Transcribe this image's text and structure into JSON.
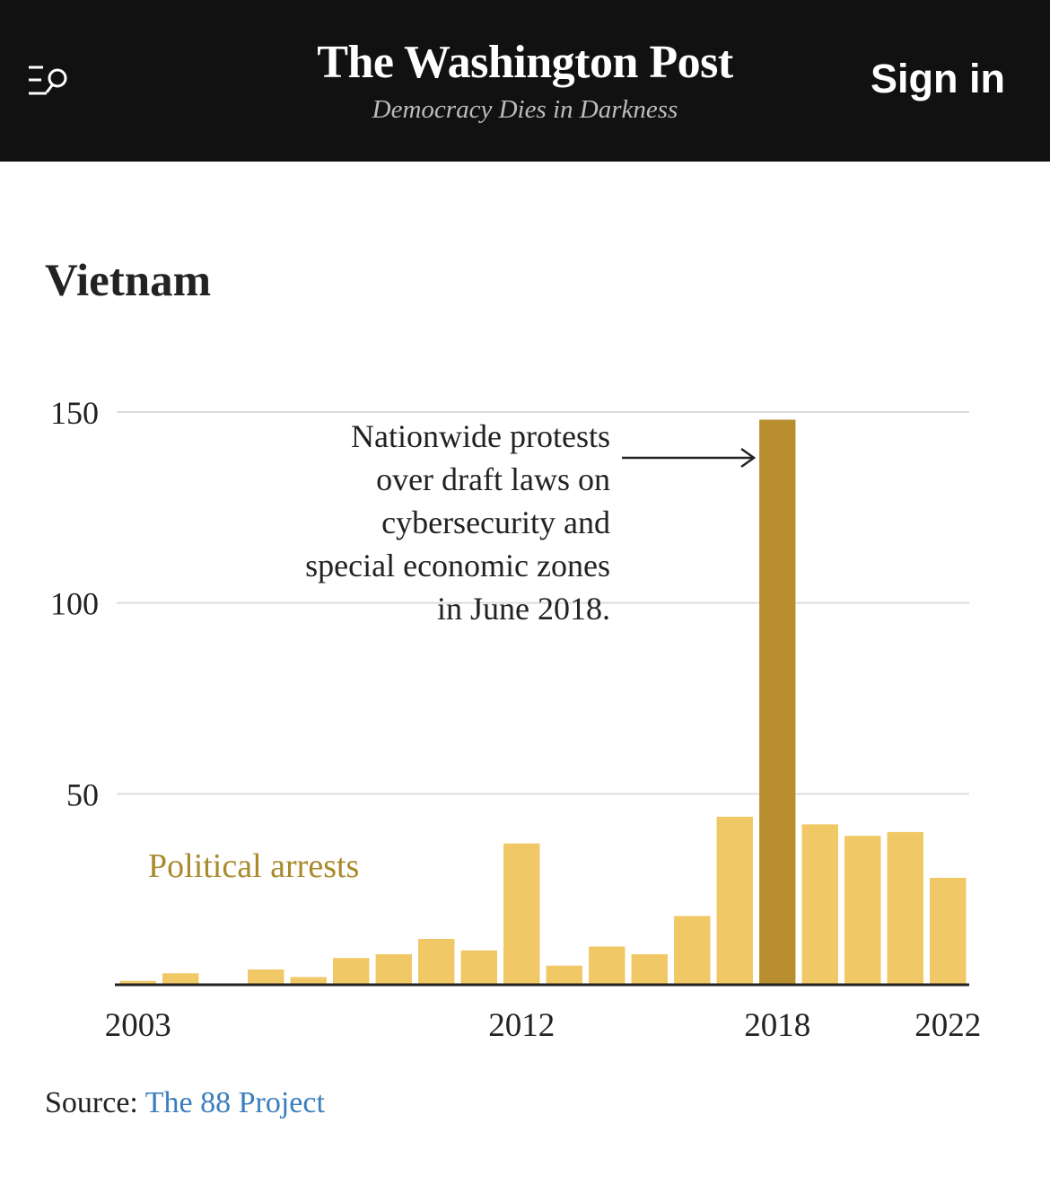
{
  "header": {
    "title": "The Washington Post",
    "tagline": "Democracy Dies in Darkness",
    "sign_in_label": "Sign in",
    "menu_icon": "menu-search-icon"
  },
  "chart_data": {
    "type": "bar",
    "title": "Vietnam",
    "series_label": "Political arrests",
    "categories": [
      "2003",
      "2004",
      "2005",
      "2006",
      "2007",
      "2008",
      "2009",
      "2010",
      "2011",
      "2012",
      "2013",
      "2014",
      "2015",
      "2016",
      "2017",
      "2018",
      "2019",
      "2020",
      "2021",
      "2022"
    ],
    "values": [
      1,
      3,
      0,
      4,
      2,
      7,
      8,
      12,
      9,
      37,
      5,
      10,
      8,
      18,
      44,
      148,
      42,
      39,
      40,
      28
    ],
    "highlight_category": "2018",
    "x_tick_labels": [
      "2003",
      "2012",
      "2018",
      "2022"
    ],
    "y_ticks": [
      50,
      100,
      150
    ],
    "ylim": [
      0,
      150
    ],
    "xlabel": "",
    "ylabel": "",
    "grid": true,
    "annotation": {
      "target": "2018",
      "lines": [
        "Nationwide protests",
        "over draft laws on",
        "cybersecurity and",
        "special economic zones",
        "in June 2018."
      ]
    },
    "colors": {
      "bar": "#f0c865",
      "highlight": "#b88e2f",
      "series_label": "#a98a2d",
      "grid": "#dddddd",
      "axis": "#222222",
      "text": "#222222"
    }
  },
  "source": {
    "prefix": "Source: ",
    "link_text": "The 88 Project"
  }
}
